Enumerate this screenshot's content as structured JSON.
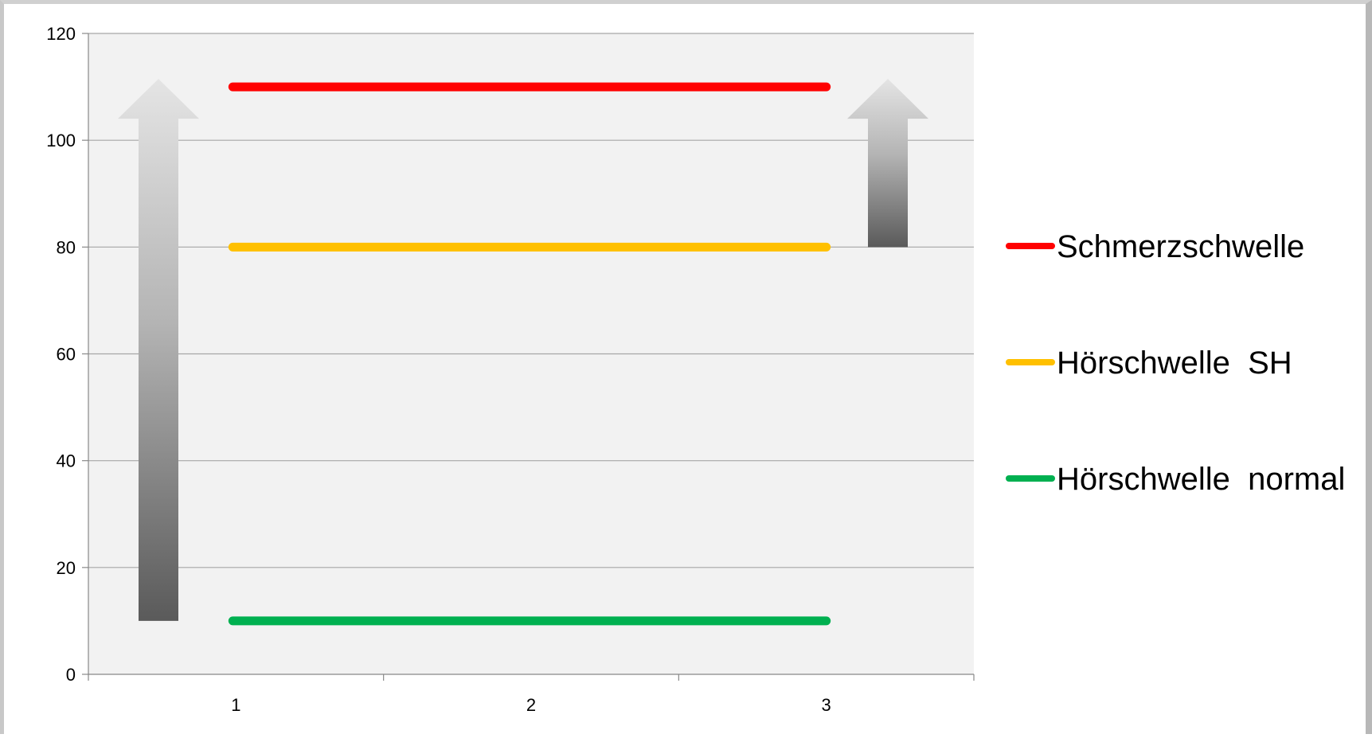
{
  "chart_data": {
    "type": "line",
    "title": "",
    "xlabel": "",
    "ylabel": "",
    "x": [
      1,
      2,
      3
    ],
    "x_tick_labels": [
      "1",
      "2",
      "3"
    ],
    "ylim": [
      0,
      120
    ],
    "y_ticks": [
      0,
      20,
      40,
      60,
      80,
      100,
      120
    ],
    "y_tick_labels": [
      "0",
      "20",
      "40",
      "60",
      "80",
      "100",
      "120"
    ],
    "grid": true,
    "legend_position": "right",
    "series": [
      {
        "name": "Schmerzschwelle",
        "values": [
          110,
          110,
          110
        ],
        "color": "#ff0000"
      },
      {
        "name": "Hörschwelle  SH",
        "values": [
          80,
          80,
          80
        ],
        "color": "#ffc000"
      },
      {
        "name": "Hörschwelle  normal",
        "values": [
          10,
          10,
          10
        ],
        "color": "#00b050"
      }
    ],
    "annotations": [
      {
        "type": "arrow-up",
        "from": 10,
        "to": 110,
        "position": "left of x=1"
      },
      {
        "type": "arrow-up",
        "from": 80,
        "to": 110,
        "position": "right of x=3"
      }
    ],
    "plot_background": "#f2f2f2",
    "gridline_color": "#a6a6a6"
  }
}
